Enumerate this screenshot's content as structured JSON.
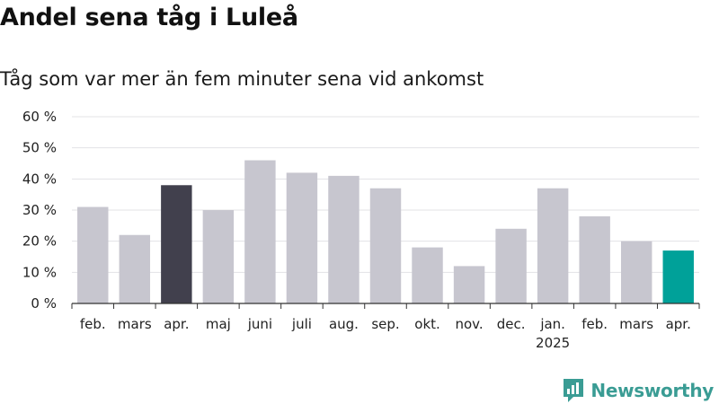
{
  "chart_data": {
    "type": "bar",
    "title": "Andel sena tåg i Luleå",
    "subtitle": "Tåg som var mer än fem minuter sena vid ankomst",
    "categories": [
      "feb.",
      "mars",
      "apr.",
      "maj",
      "juni",
      "juli",
      "aug.",
      "sep.",
      "okt.",
      "nov.",
      "dec.",
      "jan.",
      "feb.",
      "mars",
      "apr."
    ],
    "year_labels": [
      "",
      "",
      "",
      "",
      "",
      "",
      "",
      "",
      "",
      "",
      "",
      "2025",
      "",
      "",
      ""
    ],
    "values": [
      31,
      22,
      38,
      30,
      46,
      42,
      41,
      37,
      18,
      12,
      24,
      37,
      28,
      20,
      17
    ],
    "highlights": [
      "",
      "",
      "comparison",
      "",
      "",
      "",
      "",
      "",
      "",
      "",
      "",
      "",
      "",
      "",
      "current"
    ],
    "colors": {
      "default": "#c7c6cf",
      "comparison": "#41404d",
      "current": "#00a199"
    },
    "yticks": [
      0,
      10,
      20,
      30,
      40,
      50,
      60
    ],
    "ytick_suffix": " %",
    "ylim": [
      0,
      60
    ],
    "xlabel": "",
    "ylabel": "",
    "grid": true
  },
  "brand": {
    "name": "Newsworthy",
    "logo_icon": "newsworthy-chart-bubble-icon",
    "color": "#3a9c94"
  }
}
